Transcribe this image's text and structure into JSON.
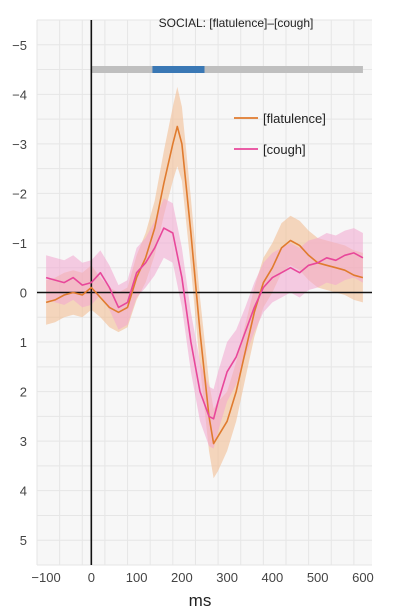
{
  "chart_data": {
    "type": "line",
    "title": "SOCIAL: [flatulence]–[cough]",
    "xlabel": "ms",
    "ylabel": "",
    "xlim": [
      -120,
      620
    ],
    "ylim": [
      -5.5,
      5.5
    ],
    "y_inverted": true,
    "grid": true,
    "legend_position": "top-right",
    "x_ticks": [
      -100,
      0,
      100,
      200,
      300,
      400,
      500,
      600
    ],
    "x_tick_labels": [
      "−100",
      "0",
      "100",
      "200",
      "300",
      "400",
      "500",
      "600"
    ],
    "y_ticks": [
      -5,
      -4,
      -3,
      -2,
      -1,
      0,
      1,
      2,
      3,
      4,
      5
    ],
    "y_tick_labels": [
      "−5",
      "−4",
      "−3",
      "−2",
      "−1",
      "0",
      "1",
      "2",
      "3",
      "4",
      "5"
    ],
    "significance_bar": {
      "y": -4.5,
      "full_range": [
        0,
        600
      ],
      "significant_range": [
        135,
        250
      ],
      "colors": {
        "full": "#bfbfbf",
        "significant": "#3a78b5"
      }
    },
    "series": [
      {
        "name": "[flatulence]",
        "color": "#e07b2e",
        "band_color": "#f2b98c",
        "x": [
          -100,
          -80,
          -60,
          -40,
          -20,
          0,
          20,
          40,
          60,
          80,
          100,
          120,
          140,
          160,
          180,
          190,
          200,
          220,
          240,
          260,
          270,
          280,
          300,
          320,
          340,
          360,
          380,
          400,
          420,
          440,
          460,
          480,
          500,
          520,
          540,
          560,
          580,
          600
        ],
        "y": [
          0.2,
          0.15,
          0.05,
          0.0,
          0.05,
          -0.1,
          0.1,
          0.3,
          0.4,
          0.3,
          -0.3,
          -0.7,
          -1.3,
          -2.2,
          -3.0,
          -3.35,
          -3.0,
          -1.2,
          0.8,
          2.5,
          3.05,
          2.9,
          2.6,
          2.0,
          1.2,
          0.4,
          -0.2,
          -0.5,
          -0.9,
          -1.05,
          -0.95,
          -0.75,
          -0.6,
          -0.55,
          -0.5,
          -0.45,
          -0.35,
          -0.3
        ],
        "err": [
          0.45,
          0.45,
          0.45,
          0.45,
          0.45,
          0.45,
          0.4,
          0.4,
          0.4,
          0.4,
          0.45,
          0.5,
          0.55,
          0.65,
          0.75,
          0.8,
          0.75,
          0.7,
          0.7,
          0.7,
          0.7,
          0.7,
          0.6,
          0.6,
          0.55,
          0.5,
          0.5,
          0.5,
          0.5,
          0.5,
          0.5,
          0.5,
          0.5,
          0.5,
          0.5,
          0.5,
          0.5,
          0.5
        ]
      },
      {
        "name": "[cough]",
        "color": "#e8479a",
        "band_color": "#f3a6d0",
        "x": [
          -100,
          -80,
          -60,
          -40,
          -20,
          0,
          20,
          40,
          60,
          80,
          100,
          120,
          140,
          160,
          180,
          200,
          220,
          240,
          260,
          270,
          280,
          300,
          320,
          340,
          360,
          380,
          400,
          420,
          440,
          460,
          480,
          500,
          520,
          540,
          560,
          580,
          600
        ],
        "y": [
          -0.3,
          -0.25,
          -0.2,
          -0.3,
          -0.15,
          -0.2,
          -0.4,
          -0.1,
          0.3,
          0.2,
          -0.4,
          -0.6,
          -0.9,
          -1.3,
          -1.2,
          -0.3,
          1.0,
          2.0,
          2.5,
          2.55,
          2.2,
          1.6,
          1.3,
          0.8,
          0.3,
          -0.1,
          -0.3,
          -0.4,
          -0.5,
          -0.4,
          -0.55,
          -0.6,
          -0.7,
          -0.65,
          -0.75,
          -0.8,
          -0.7
        ],
        "err": [
          0.45,
          0.45,
          0.45,
          0.45,
          0.45,
          0.45,
          0.45,
          0.45,
          0.45,
          0.45,
          0.5,
          0.5,
          0.55,
          0.6,
          0.6,
          0.6,
          0.6,
          0.6,
          0.6,
          0.6,
          0.6,
          0.6,
          0.55,
          0.5,
          0.5,
          0.5,
          0.5,
          0.5,
          0.5,
          0.5,
          0.5,
          0.5,
          0.5,
          0.5,
          0.5,
          0.5,
          0.5
        ]
      }
    ]
  }
}
